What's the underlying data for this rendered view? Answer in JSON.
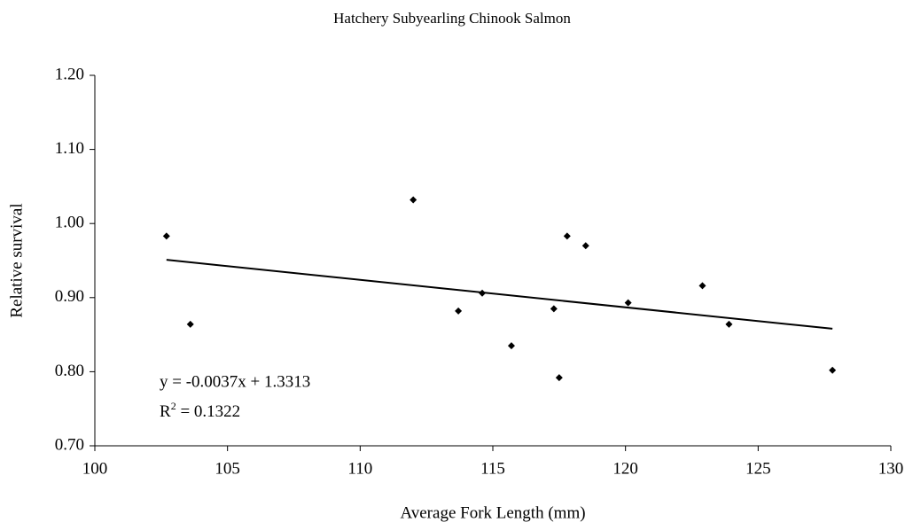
{
  "chart_data": {
    "type": "scatter",
    "title": "Hatchery Subyearling Chinook Salmon",
    "x_label": "Average Fork Length (mm)",
    "y_label": "Relative survival",
    "xlim": [
      100,
      130
    ],
    "xticks": [
      100,
      105,
      110,
      115,
      120,
      125,
      130
    ],
    "ylim": [
      0.7,
      1.2
    ],
    "yticks": [
      {
        "value": 0.7,
        "label": "0.70"
      },
      {
        "value": 0.8,
        "label": "0.80"
      },
      {
        "value": 0.9,
        "label": "0.90"
      },
      {
        "value": 1.0,
        "label": "1.00"
      },
      {
        "value": 1.1,
        "label": "1.10"
      },
      {
        "value": 1.2,
        "label": "1.20"
      }
    ],
    "grid": false,
    "color": "#000000",
    "x": [
      102.7,
      103.6,
      112.0,
      113.7,
      114.6,
      115.7,
      117.3,
      117.5,
      117.8,
      118.5,
      120.1,
      122.9,
      123.9,
      127.8
    ],
    "values": [
      0.983,
      0.864,
      1.032,
      0.882,
      0.906,
      0.835,
      0.885,
      0.792,
      0.983,
      0.97,
      0.893,
      0.916,
      0.864,
      0.802
    ],
    "trendline": {
      "x": [
        102.7,
        127.8
      ],
      "values": [
        0.951,
        0.858
      ]
    },
    "equation": "y = -0.0037x + 1.3313",
    "r2": {
      "base": "R",
      "sup": "2",
      "text": " = 0.1322"
    }
  }
}
